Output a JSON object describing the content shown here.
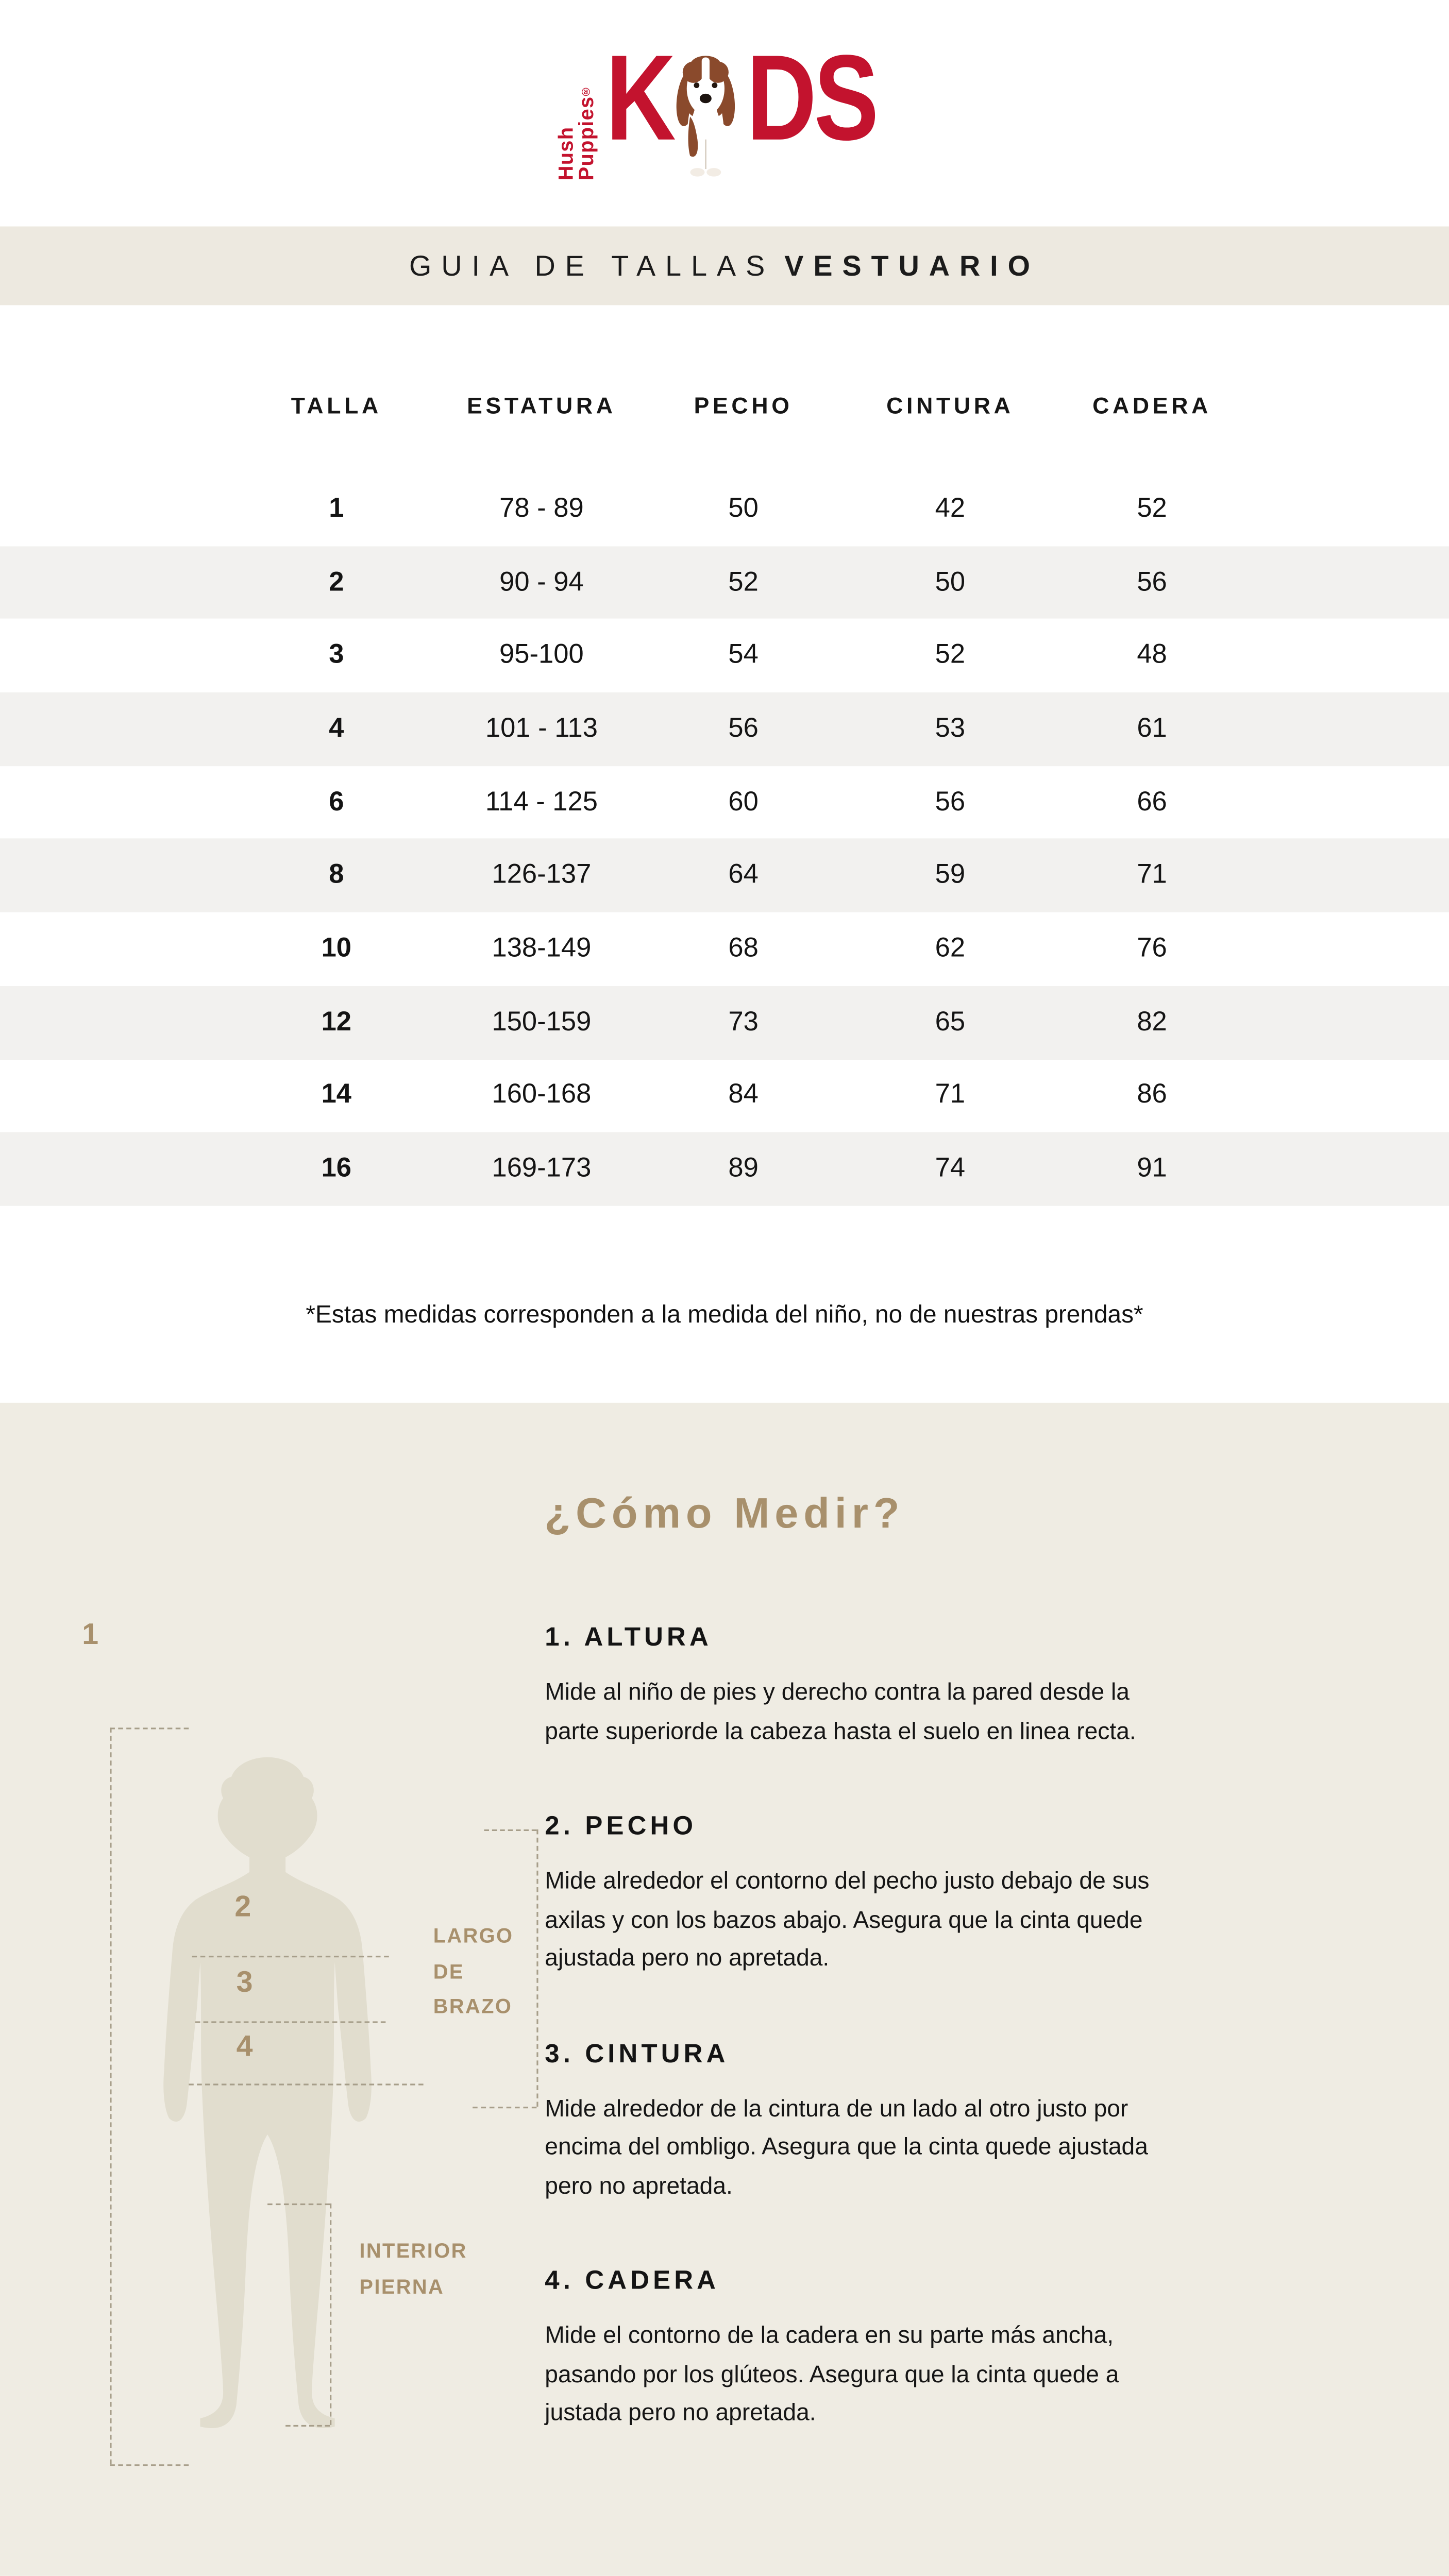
{
  "logo": {
    "brand_vertical": "Hush Puppies",
    "registered": "®",
    "kids_k": "K",
    "kids_ds": "DS",
    "brand_color": "#C3132E",
    "dog_icon": "basset-hound"
  },
  "banner": {
    "title_light": "GUIA DE TALLAS",
    "title_bold": "VESTUARIO",
    "background": "#EDE9E0"
  },
  "size_table": {
    "headers": [
      "TALLA",
      "ESTATURA",
      "PECHO",
      "CINTURA",
      "CADERA"
    ],
    "rows": [
      [
        "1",
        "78 - 89",
        "50",
        "42",
        "52"
      ],
      [
        "2",
        "90 - 94",
        "52",
        "50",
        "56"
      ],
      [
        "3",
        "95-100",
        "54",
        "52",
        "48"
      ],
      [
        "4",
        "101 - 113",
        "56",
        "53",
        "61"
      ],
      [
        "6",
        "114 - 125",
        "60",
        "56",
        "66"
      ],
      [
        "8",
        "126-137",
        "64",
        "59",
        "71"
      ],
      [
        "10",
        "138-149",
        "68",
        "62",
        "76"
      ],
      [
        "12",
        "150-159",
        "73",
        "65",
        "82"
      ],
      [
        "14",
        "160-168",
        "84",
        "71",
        "86"
      ],
      [
        "16",
        "169-173",
        "89",
        "74",
        "91"
      ]
    ],
    "stripe_color": "#F2F1EF"
  },
  "note": "*Estas medidas corresponden a la medida del niño, no de nuestras prendas*",
  "how_to_measure": {
    "title": "¿Cómo Medir?",
    "accent_color": "#A8906C",
    "background": "#EFECE3",
    "diagram": {
      "marker_1": "1",
      "marker_2": "2",
      "marker_3": "3",
      "marker_4": "4",
      "label_arm_length": [
        "LARGO",
        "DE",
        "BRAZO"
      ],
      "label_inseam": [
        "INTERIOR",
        "PIERNA"
      ]
    },
    "sections": [
      {
        "heading": "1. ALTURA",
        "lines": [
          "Mide al niño de pies y derecho contra la pared desde la",
          "parte superiorde la cabeza hasta el suelo en linea recta."
        ]
      },
      {
        "heading": "2. PECHO",
        "lines": [
          "Mide alrededor el contorno del pecho  justo debajo de sus",
          "axilas y con los bazos abajo. Asegura que la cinta quede",
          "ajustada pero no apretada."
        ]
      },
      {
        "heading": "3. CINTURA",
        "lines": [
          "Mide alrededor de la cintura de un lado al otro justo por",
          "encima del ombligo. Asegura que la cinta quede ajustada",
          "pero no apretada."
        ]
      },
      {
        "heading": "4. CADERA",
        "lines": [
          "Mide el contorno de la cadera en su parte más ancha,",
          "pasando por los glúteos. Asegura que la cinta quede a",
          "justada pero no apretada."
        ]
      }
    ]
  }
}
